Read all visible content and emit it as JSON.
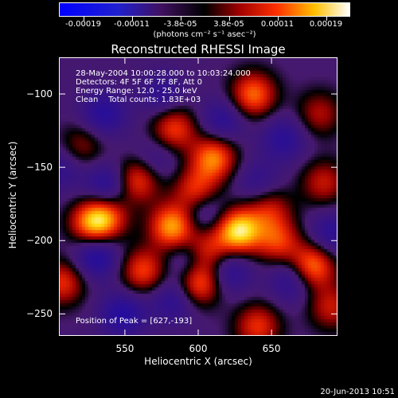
{
  "colorbar": {
    "ticks": [
      "-0.00019",
      "-0.00011",
      "-3.8e-05",
      "3.8e-05",
      "0.00011",
      "0.00019"
    ],
    "units": "(photons cm⁻² s⁻¹ asec⁻²)"
  },
  "chart_data": {
    "type": "heatmap",
    "title": "Reconstructed RHESSI Image",
    "xlabel": "Heliocentric X (arcsec)",
    "ylabel": "Heliocentric Y (arcsec)",
    "xlim": [
      505,
      695
    ],
    "ylim": [
      -265,
      -75
    ],
    "xticks": [
      550,
      600,
      650
    ],
    "yticks": [
      -100,
      -150,
      -200,
      -250
    ],
    "colormap": "blue-black-red-yellow-white",
    "clim": [
      -0.00019,
      0.00019
    ],
    "annotations": [
      "28-May-2004 10:00:28.000 to 10:03:24.000",
      "Detectors: 4F 5F 6F 7F 8F, Att 0",
      "Energy Range: 12.0 - 25.0 keV",
      "Clean    Total counts: 1.83E+03"
    ],
    "peak_label": "Position of Peak = [627,-193]",
    "peak": [
      627,
      -193
    ],
    "blobs": [
      {
        "x": 627,
        "y": -193,
        "amp": 1.0
      },
      {
        "x": 582,
        "y": -190,
        "amp": 0.85
      },
      {
        "x": 527,
        "y": -188,
        "amp": 0.7
      },
      {
        "x": 537,
        "y": -183,
        "amp": 0.55
      },
      {
        "x": 558,
        "y": -158,
        "amp": 0.65
      },
      {
        "x": 598,
        "y": -166,
        "amp": 0.6
      },
      {
        "x": 583,
        "y": -123,
        "amp": 0.6
      },
      {
        "x": 637,
        "y": -100,
        "amp": 0.7
      },
      {
        "x": 610,
        "y": -143,
        "amp": 0.75
      },
      {
        "x": 648,
        "y": -178,
        "amp": 0.45
      },
      {
        "x": 600,
        "y": -228,
        "amp": 0.75
      },
      {
        "x": 605,
        "y": -207,
        "amp": 0.6
      },
      {
        "x": 654,
        "y": -200,
        "amp": 0.55
      },
      {
        "x": 562,
        "y": -220,
        "amp": 0.6
      },
      {
        "x": 677,
        "y": -217,
        "amp": 0.8
      },
      {
        "x": 685,
        "y": -160,
        "amp": 0.45
      },
      {
        "x": 682,
        "y": -113,
        "amp": 0.4
      },
      {
        "x": 507,
        "y": -228,
        "amp": 0.55
      },
      {
        "x": 640,
        "y": -258,
        "amp": 0.55
      },
      {
        "x": 690,
        "y": -245,
        "amp": 0.45
      },
      {
        "x": 520,
        "y": -135,
        "amp": 0.35
      },
      {
        "x": 538,
        "y": -162,
        "amp": -0.5
      },
      {
        "x": 530,
        "y": -210,
        "amp": -0.55
      },
      {
        "x": 548,
        "y": -250,
        "amp": -0.5
      },
      {
        "x": 583,
        "y": -240,
        "amp": -0.4
      },
      {
        "x": 594,
        "y": -213,
        "amp": -0.45
      },
      {
        "x": 603,
        "y": -180,
        "amp": -0.4
      },
      {
        "x": 620,
        "y": -220,
        "amp": -0.45
      },
      {
        "x": 664,
        "y": -226,
        "amp": -0.45
      },
      {
        "x": 690,
        "y": -195,
        "amp": -0.4
      },
      {
        "x": 658,
        "y": -130,
        "amp": -0.4
      },
      {
        "x": 616,
        "y": -118,
        "amp": -0.4
      },
      {
        "x": 575,
        "y": -100,
        "amp": -0.35
      },
      {
        "x": 535,
        "y": -113,
        "amp": -0.45
      },
      {
        "x": 506,
        "y": -150,
        "amp": -0.3
      },
      {
        "x": 640,
        "y": -160,
        "amp": -0.3
      },
      {
        "x": 570,
        "y": -145,
        "amp": -0.3
      }
    ]
  },
  "footer": "20-Jun-2013 10:51"
}
